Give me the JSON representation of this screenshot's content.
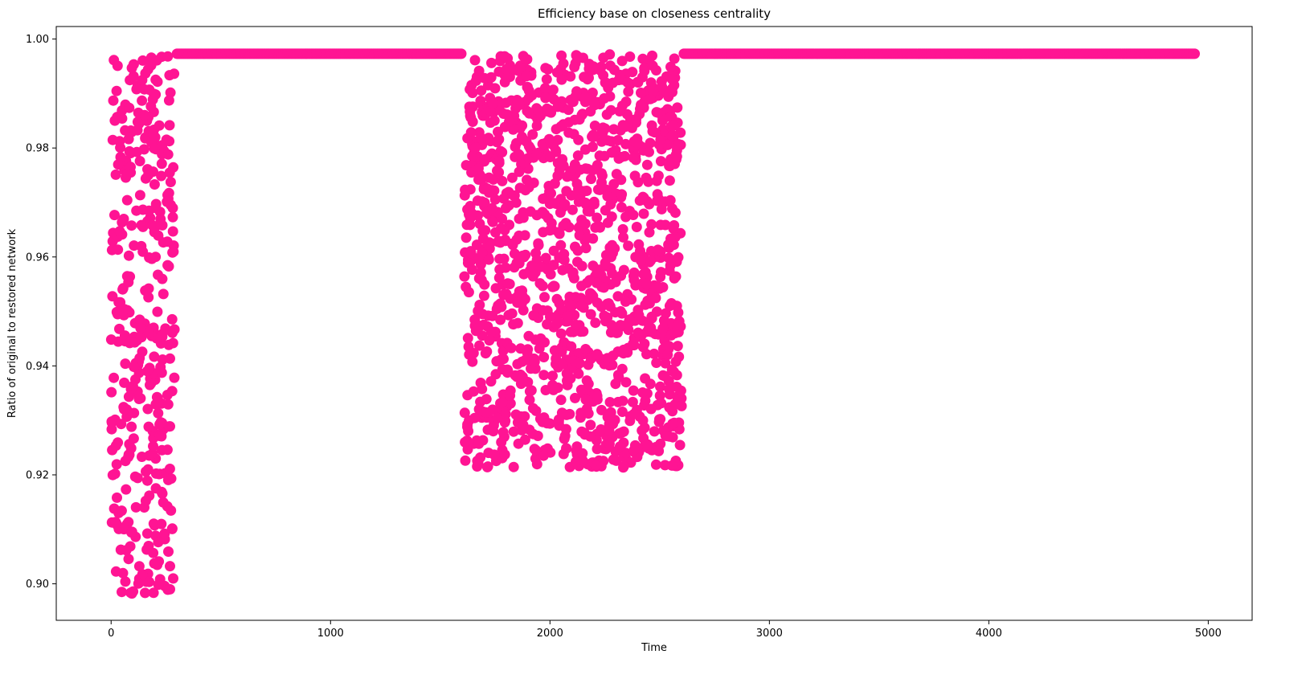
{
  "chart_data": {
    "type": "scatter",
    "title": "Efficiency base on closeness centrality",
    "xlabel": "Time",
    "ylabel": "Ratio of original to restored network",
    "xlim": [
      -250,
      5200
    ],
    "ylim": [
      0.8933,
      1.0023
    ],
    "xticks": [
      0,
      1000,
      2000,
      3000,
      4000,
      5000
    ],
    "xtick_labels": [
      "0",
      "1000",
      "2000",
      "3000",
      "4000",
      "5000"
    ],
    "yticks": [
      0.9,
      0.92,
      0.94,
      0.96,
      0.98,
      1.0
    ],
    "ytick_labels": [
      "0.90",
      "0.92",
      "0.94",
      "0.96",
      "0.98",
      "1.00"
    ],
    "grid": false,
    "color": "#ff1493",
    "series": [
      {
        "description": "plateau segments at constant ratio",
        "segments": [
          {
            "x_start": 300,
            "x_end": 1600,
            "y": 0.9973
          },
          {
            "x_start": 2610,
            "x_end": 4940,
            "y": 0.9973
          }
        ]
      },
      {
        "description": "scattered values",
        "clusters": [
          {
            "x_start": 0,
            "x_end": 290,
            "y_min": 0.8978,
            "y_max": 0.997
          },
          {
            "x_start": 1610,
            "x_end": 2600,
            "y_min": 0.9213,
            "y_max": 0.9972
          }
        ]
      }
    ]
  }
}
